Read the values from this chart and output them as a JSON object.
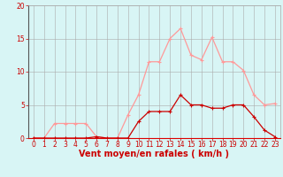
{
  "x": [
    0,
    1,
    2,
    3,
    4,
    5,
    6,
    7,
    8,
    9,
    10,
    11,
    12,
    13,
    14,
    15,
    16,
    17,
    18,
    19,
    20,
    21,
    22,
    23
  ],
  "y_rafales": [
    0,
    0,
    2.2,
    2.2,
    2.2,
    2.2,
    0.2,
    0,
    0,
    3.5,
    6.5,
    11.5,
    11.5,
    15,
    16.5,
    12.5,
    11.8,
    15.2,
    11.5,
    11.5,
    10.2,
    6.5,
    5,
    5.2
  ],
  "y_moyen": [
    0,
    0,
    0,
    0,
    0,
    0,
    0.2,
    0,
    0,
    0,
    2.5,
    4,
    4,
    4,
    6.5,
    5,
    5,
    4.5,
    4.5,
    5,
    5,
    3.2,
    1.2,
    0.2
  ],
  "line_color_rafales": "#ff9999",
  "line_color_moyen": "#cc0000",
  "bg_color": "#d8f5f5",
  "grid_color": "#aaaaaa",
  "xlabel": "Vent moyen/en rafales ( km/h )",
  "ylim": [
    0,
    20
  ],
  "xlim": [
    -0.5,
    23.5
  ],
  "yticks": [
    0,
    5,
    10,
    15,
    20
  ],
  "xticks": [
    0,
    1,
    2,
    3,
    4,
    5,
    6,
    7,
    8,
    9,
    10,
    11,
    12,
    13,
    14,
    15,
    16,
    17,
    18,
    19,
    20,
    21,
    22,
    23
  ],
  "tick_color": "#cc0000",
  "xlabel_color": "#cc0000",
  "xlabel_fontsize": 7,
  "tick_fontsize": 5.5,
  "marker_size": 3
}
